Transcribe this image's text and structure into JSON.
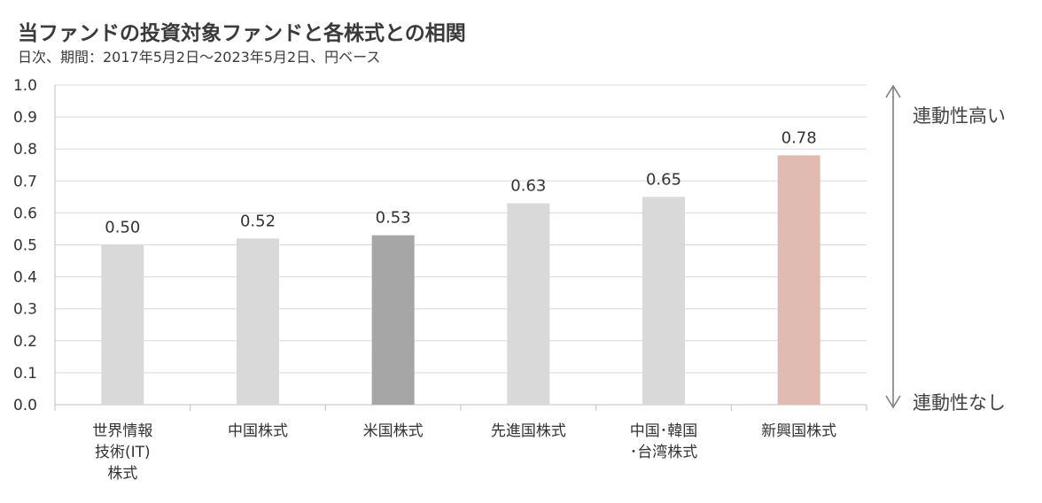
{
  "title": "当ファンドの投資対象ファンドと各株式との相関",
  "subtitle": "日次、期間：2017年5月2日～2023年5月2日、円ベース",
  "side_labels": {
    "high": "連動性高い",
    "none": "連動性なし"
  },
  "chart_data": {
    "type": "bar",
    "title": "当ファンドの投資対象ファンドと各株式との相関",
    "subtitle": "日次、期間：2017年5月2日～2023年5月2日、円ベース",
    "categories": [
      [
        "世界情報",
        "技術(IT)",
        "株式"
      ],
      [
        "中国株式"
      ],
      [
        "米国株式"
      ],
      [
        "先進国株式"
      ],
      [
        "中国･韓国",
        "･台湾株式"
      ],
      [
        "新興国株式"
      ]
    ],
    "values": [
      0.5,
      0.52,
      0.53,
      0.63,
      0.65,
      0.78
    ],
    "value_labels": [
      "0.50",
      "0.52",
      "0.53",
      "0.63",
      "0.65",
      "0.78"
    ],
    "bar_colors": [
      "#d9d9d9",
      "#d9d9d9",
      "#a6a6a6",
      "#d9d9d9",
      "#d9d9d9",
      "#dfbbb1"
    ],
    "ylim": [
      0,
      1.0
    ],
    "yticks": [
      "0.0",
      "0.1",
      "0.2",
      "0.3",
      "0.4",
      "0.5",
      "0.6",
      "0.7",
      "0.8",
      "0.9",
      "1.0"
    ],
    "grid": true,
    "legend": "none"
  }
}
